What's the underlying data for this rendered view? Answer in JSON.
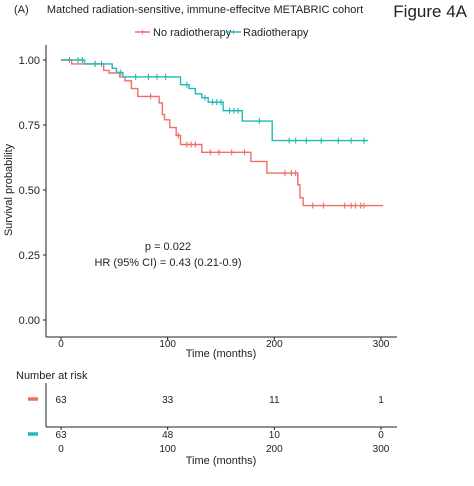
{
  "figure_label": "Figure 4A",
  "chart_data": {
    "type": "line",
    "panel_tag": "(A)",
    "title": "Matched radiation-sensitive, immune-effecitve METABRIC cohort",
    "xlabel": "Time (months)",
    "ylabel": "Survival probability",
    "xlim": [
      0,
      300
    ],
    "ylim": [
      0,
      1
    ],
    "x_ticks": [
      0,
      100,
      200,
      300
    ],
    "y_ticks": [
      0.0,
      0.25,
      0.5,
      0.75,
      1.0
    ],
    "y_tick_labels": [
      "0.00",
      "0.25",
      "0.50",
      "0.75",
      "1.00"
    ],
    "legend_position": "top",
    "annotations": {
      "p_value": "p = 0.022",
      "hazard_ratio": "HR (95% CI) = 0.43 (0.21-0.9)"
    },
    "series": [
      {
        "name": "No radiotherapy",
        "color": "#f06e64",
        "steps": [
          {
            "x": 0,
            "y": 1.0
          },
          {
            "x": 10,
            "y": 0.985
          },
          {
            "x": 40,
            "y": 0.96
          },
          {
            "x": 45,
            "y": 0.95
          },
          {
            "x": 55,
            "y": 0.935
          },
          {
            "x": 60,
            "y": 0.92
          },
          {
            "x": 66,
            "y": 0.89
          },
          {
            "x": 72,
            "y": 0.86
          },
          {
            "x": 92,
            "y": 0.835
          },
          {
            "x": 95,
            "y": 0.79
          },
          {
            "x": 97,
            "y": 0.77
          },
          {
            "x": 102,
            "y": 0.74
          },
          {
            "x": 108,
            "y": 0.71
          },
          {
            "x": 112,
            "y": 0.675
          },
          {
            "x": 132,
            "y": 0.645
          },
          {
            "x": 178,
            "y": 0.61
          },
          {
            "x": 193,
            "y": 0.565
          },
          {
            "x": 222,
            "y": 0.52
          },
          {
            "x": 224,
            "y": 0.47
          },
          {
            "x": 227,
            "y": 0.44
          },
          {
            "x": 302,
            "y": 0.44
          }
        ],
        "censored": [
          {
            "x": 8,
            "y": 1.0
          },
          {
            "x": 32,
            "y": 0.985
          },
          {
            "x": 84,
            "y": 0.86
          },
          {
            "x": 110,
            "y": 0.71
          },
          {
            "x": 118,
            "y": 0.675
          },
          {
            "x": 122,
            "y": 0.675
          },
          {
            "x": 126,
            "y": 0.675
          },
          {
            "x": 140,
            "y": 0.645
          },
          {
            "x": 148,
            "y": 0.645
          },
          {
            "x": 160,
            "y": 0.645
          },
          {
            "x": 172,
            "y": 0.645
          },
          {
            "x": 210,
            "y": 0.565
          },
          {
            "x": 216,
            "y": 0.565
          },
          {
            "x": 220,
            "y": 0.565
          },
          {
            "x": 236,
            "y": 0.44
          },
          {
            "x": 246,
            "y": 0.44
          },
          {
            "x": 266,
            "y": 0.44
          },
          {
            "x": 272,
            "y": 0.44
          },
          {
            "x": 276,
            "y": 0.44
          },
          {
            "x": 281,
            "y": 0.44
          },
          {
            "x": 284,
            "y": 0.44
          }
        ]
      },
      {
        "name": "Radiotherapy",
        "color": "#22b9b9",
        "steps": [
          {
            "x": 0,
            "y": 1.0
          },
          {
            "x": 22,
            "y": 0.985
          },
          {
            "x": 48,
            "y": 0.968
          },
          {
            "x": 52,
            "y": 0.952
          },
          {
            "x": 58,
            "y": 0.935
          },
          {
            "x": 112,
            "y": 0.905
          },
          {
            "x": 120,
            "y": 0.89
          },
          {
            "x": 126,
            "y": 0.87
          },
          {
            "x": 132,
            "y": 0.855
          },
          {
            "x": 138,
            "y": 0.838
          },
          {
            "x": 152,
            "y": 0.805
          },
          {
            "x": 170,
            "y": 0.765
          },
          {
            "x": 198,
            "y": 0.69
          },
          {
            "x": 288,
            "y": 0.69
          }
        ],
        "censored": [
          {
            "x": 16,
            "y": 1.0
          },
          {
            "x": 20,
            "y": 1.0
          },
          {
            "x": 32,
            "y": 0.985
          },
          {
            "x": 38,
            "y": 0.985
          },
          {
            "x": 56,
            "y": 0.952
          },
          {
            "x": 70,
            "y": 0.935
          },
          {
            "x": 82,
            "y": 0.935
          },
          {
            "x": 90,
            "y": 0.935
          },
          {
            "x": 98,
            "y": 0.935
          },
          {
            "x": 118,
            "y": 0.905
          },
          {
            "x": 135,
            "y": 0.855
          },
          {
            "x": 142,
            "y": 0.838
          },
          {
            "x": 146,
            "y": 0.838
          },
          {
            "x": 150,
            "y": 0.838
          },
          {
            "x": 158,
            "y": 0.805
          },
          {
            "x": 162,
            "y": 0.805
          },
          {
            "x": 166,
            "y": 0.805
          },
          {
            "x": 186,
            "y": 0.765
          },
          {
            "x": 214,
            "y": 0.69
          },
          {
            "x": 220,
            "y": 0.69
          },
          {
            "x": 230,
            "y": 0.69
          },
          {
            "x": 244,
            "y": 0.69
          },
          {
            "x": 260,
            "y": 0.69
          },
          {
            "x": 272,
            "y": 0.69
          },
          {
            "x": 284,
            "y": 0.69
          }
        ]
      }
    ],
    "risk_table": {
      "title": "Number at risk",
      "xlabel": "Time (months)",
      "times": [
        0,
        100,
        200,
        300
      ],
      "rows": [
        {
          "series": "No radiotherapy",
          "counts": [
            63,
            33,
            11,
            1
          ]
        },
        {
          "series": "Radiotherapy",
          "counts": [
            63,
            48,
            10,
            0
          ]
        }
      ]
    }
  }
}
